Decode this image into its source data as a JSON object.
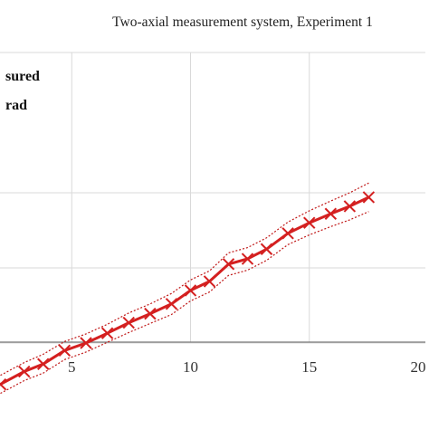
{
  "chart_data": {
    "type": "line",
    "title": "Two-axial measurement system, Experiment 1",
    "xlabel": "",
    "ylabel": "",
    "x_ticks": [
      "5",
      "10",
      "15",
      "20"
    ],
    "xlim": [
      2,
      20
    ],
    "ylim": [
      0,
      3.5
    ],
    "grid": true,
    "legend": {
      "placement": "top-left",
      "entries": [
        "sured",
        "rad"
      ]
    },
    "series": [
      {
        "name": "",
        "color": "#d42020",
        "marker": "x",
        "x": [
          2,
          3,
          3.8,
          4.7,
          5.6,
          6.5,
          7.4,
          8.3,
          9.2,
          10,
          10.8,
          11.6,
          12.4,
          13.2,
          14.1,
          15,
          15.9,
          16.7,
          17.5
        ],
        "y": [
          0.45,
          0.62,
          0.72,
          0.9,
          1.0,
          1.13,
          1.27,
          1.39,
          1.52,
          1.7,
          1.82,
          2.05,
          2.12,
          2.25,
          2.46,
          2.6,
          2.72,
          2.82,
          2.94
        ]
      },
      {
        "name": "",
        "color": "#c01818",
        "style": "dotted",
        "x": [
          2,
          3,
          3.8,
          4.7,
          5.6,
          6.5,
          7.4,
          8.3,
          9.2,
          10,
          10.8,
          11.6,
          12.4,
          13.2,
          14.1,
          15,
          15.9,
          16.7,
          17.5
        ],
        "y": [
          0.57,
          0.74,
          0.85,
          1.02,
          1.12,
          1.25,
          1.4,
          1.52,
          1.66,
          1.84,
          1.96,
          2.2,
          2.27,
          2.4,
          2.61,
          2.76,
          2.89,
          3.0,
          3.13
        ]
      },
      {
        "name": "",
        "color": "#c01818",
        "style": "dotted",
        "x": [
          2,
          3,
          3.8,
          4.7,
          5.6,
          6.5,
          7.4,
          8.3,
          9.2,
          10,
          10.8,
          11.6,
          12.4,
          13.2,
          14.1,
          15,
          15.9,
          16.7,
          17.5
        ],
        "y": [
          0.33,
          0.5,
          0.6,
          0.78,
          0.88,
          1.01,
          1.14,
          1.26,
          1.38,
          1.56,
          1.68,
          1.9,
          1.97,
          2.1,
          2.31,
          2.44,
          2.55,
          2.64,
          2.75
        ]
      }
    ]
  }
}
